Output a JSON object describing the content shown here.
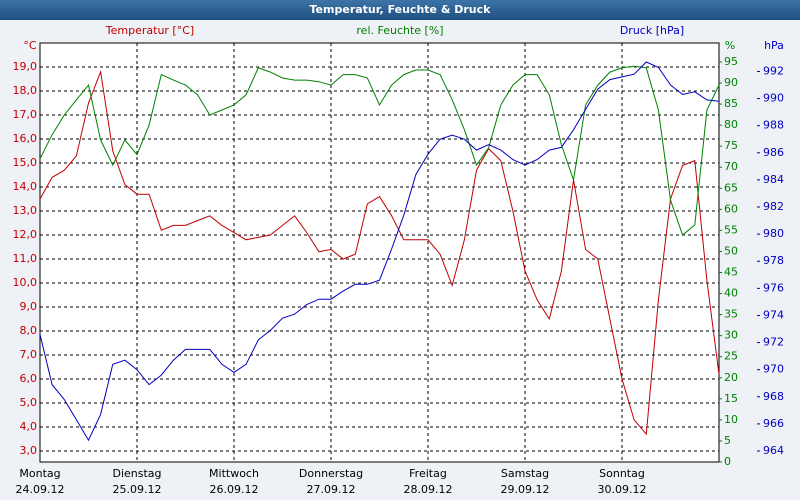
{
  "chart_data": {
    "type": "line",
    "title": "Temperatur, Feuchte & Druck",
    "y_label": "°C",
    "y2_label": "%",
    "y3_label": "hPa",
    "x": [
      0,
      0.125,
      0.25,
      0.375,
      0.5,
      0.625,
      0.75,
      0.875,
      1,
      1.125,
      1.25,
      1.375,
      1.5,
      1.625,
      1.75,
      1.875,
      2,
      2.125,
      2.25,
      2.375,
      2.5,
      2.625,
      2.75,
      2.875,
      3,
      3.125,
      3.25,
      3.375,
      3.5,
      3.625,
      3.75,
      3.875,
      4,
      4.125,
      4.25,
      4.375,
      4.5,
      4.625,
      4.75,
      4.875,
      5,
      5.125,
      5.25,
      5.375,
      5.5,
      5.625,
      5.75,
      5.875,
      6,
      6.125,
      6.25,
      6.375,
      6.5,
      6.625,
      6.75,
      6.875,
      7
    ],
    "xlim": [
      0,
      7
    ],
    "xticks": [
      0,
      1,
      2,
      3,
      4,
      5,
      6
    ],
    "days": [
      {
        "name": "Montag",
        "date": "24.09.12"
      },
      {
        "name": "Dienstag",
        "date": "25.09.12"
      },
      {
        "name": "Mittwoch",
        "date": "26.09.12"
      },
      {
        "name": "Donnerstag",
        "date": "27.09.12"
      },
      {
        "name": "Freitag",
        "date": "28.09.12"
      },
      {
        "name": "Samstag",
        "date": "29.09.12"
      },
      {
        "name": "Sonntag",
        "date": "30.09.12"
      }
    ],
    "series": [
      {
        "name": "Temperatur [°C]",
        "color": "#c00000",
        "axis": "y",
        "values": [
          13.5,
          14.4,
          14.7,
          15.3,
          17.5,
          18.8,
          15.5,
          14.1,
          13.7,
          13.7,
          12.2,
          12.4,
          12.4,
          12.6,
          12.8,
          12.4,
          12.1,
          11.8,
          11.9,
          12.0,
          12.4,
          12.8,
          12.1,
          11.3,
          11.4,
          11.0,
          11.2,
          13.3,
          13.6,
          12.8,
          11.8,
          11.8,
          11.8,
          11.2,
          9.9,
          11.8,
          14.7,
          15.6,
          15.1,
          13.0,
          10.5,
          9.3,
          8.5,
          10.5,
          14.3,
          11.4,
          11.0,
          8.5,
          6.0,
          4.3,
          3.7,
          9.3,
          13.5,
          14.9,
          15.1,
          10.1,
          6.2
        ]
      },
      {
        "name": "rel. Feuchte [%]",
        "color": "#008000",
        "axis": "y2",
        "values": [
          72,
          77.7,
          82.4,
          86,
          89.5,
          76.5,
          70.5,
          76.5,
          73,
          80,
          92,
          90.7,
          89.5,
          87.2,
          82.4,
          83.6,
          84.8,
          87.2,
          93.6,
          92.6,
          91.2,
          90.7,
          90.7,
          90.3,
          89.5,
          92,
          92,
          91.2,
          84.8,
          89.5,
          92,
          93.1,
          93.1,
          92,
          86,
          78.9,
          70.5,
          74.6,
          84.8,
          89.5,
          92,
          92,
          87.2,
          75.3,
          67,
          84.8,
          89.5,
          92.6,
          93.6,
          94,
          93.6,
          83.6,
          62.2,
          53.9,
          56.3,
          83.6,
          89.5
        ]
      },
      {
        "name": "Druck [hPa]",
        "color": "#0000c0",
        "axis": "y3",
        "values": [
          972.6,
          968.9,
          967.8,
          966.3,
          964.8,
          966.7,
          970.4,
          970.7,
          970,
          968.9,
          969.6,
          970.7,
          971.5,
          971.5,
          971.5,
          970.4,
          969.8,
          970.4,
          972.2,
          972.9,
          973.8,
          974.1,
          974.8,
          975.2,
          975.2,
          975.8,
          976.3,
          976.3,
          976.6,
          978.9,
          981.4,
          984.4,
          985.9,
          987,
          987.3,
          987,
          986.2,
          986.6,
          986.2,
          985.5,
          985.1,
          985.5,
          986.2,
          986.4,
          987.7,
          989.2,
          990.7,
          991.4,
          991.6,
          991.8,
          992.7,
          992.3,
          991,
          990.3,
          990.5,
          989.9,
          989.8
        ]
      }
    ],
    "ylim": [
      2.54,
      20
    ],
    "yticks": [
      {
        "value": 3,
        "label": "3,0"
      },
      {
        "value": 4,
        "label": "4,0"
      },
      {
        "value": 5,
        "label": "5,0"
      },
      {
        "value": 6,
        "label": "6,0"
      },
      {
        "value": 7,
        "label": "7,0"
      },
      {
        "value": 8,
        "label": "8,0"
      },
      {
        "value": 9,
        "label": "9,0"
      },
      {
        "value": 10,
        "label": "10,0"
      },
      {
        "value": 11,
        "label": "11,0"
      },
      {
        "value": 12,
        "label": "12,0"
      },
      {
        "value": 13,
        "label": "13,0"
      },
      {
        "value": 14,
        "label": "14,0"
      },
      {
        "value": 15,
        "label": "15,0"
      },
      {
        "value": 16,
        "label": "16,0"
      },
      {
        "value": 17,
        "label": "17,0"
      },
      {
        "value": 18,
        "label": "18,0"
      },
      {
        "value": 19,
        "label": "19,0"
      }
    ],
    "y2lim": [
      0,
      99.5
    ],
    "y2ticks": [
      0,
      5,
      10,
      15,
      20,
      25,
      30,
      35,
      40,
      45,
      50,
      55,
      60,
      65,
      70,
      75,
      80,
      85,
      90,
      95
    ],
    "y3lim": [
      963.19,
      994.1
    ],
    "y3ticks": [
      964,
      966,
      968,
      970,
      972,
      974,
      976,
      978,
      980,
      982,
      984,
      986,
      988,
      990,
      992
    ],
    "grid": true
  }
}
